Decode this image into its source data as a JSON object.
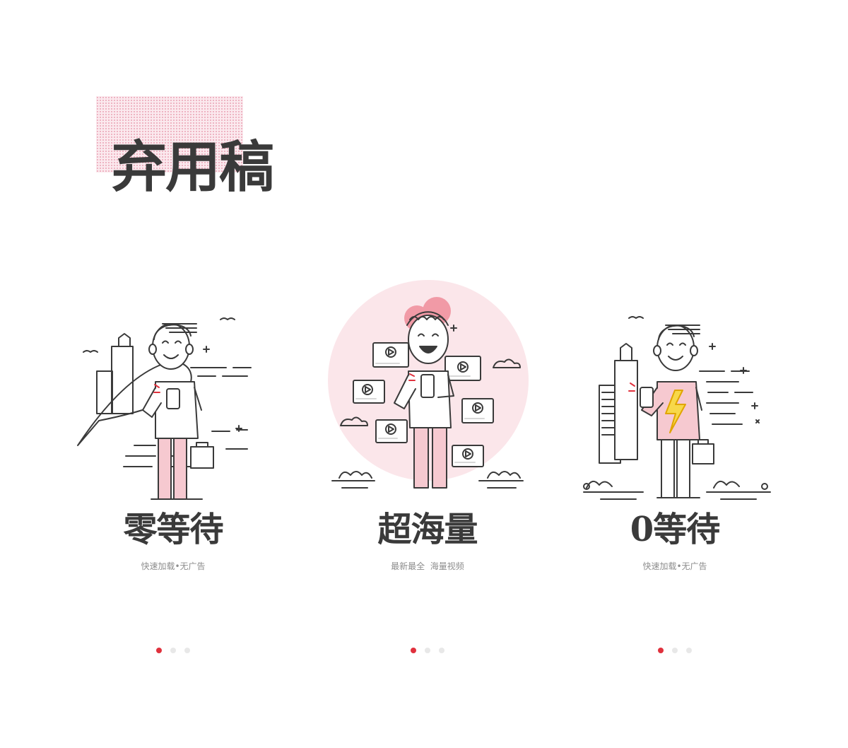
{
  "page": {
    "title": "弃用稿"
  },
  "colors": {
    "accent": "#e0313d",
    "pink": "#f6c9d0",
    "ink": "#3a3a3a",
    "sub": "#8d8d8d"
  },
  "cards": [
    {
      "title": "零等待",
      "subtitle": "快速加载•无广告",
      "illustration": "man-with-phone-city-icon",
      "active_dot": 1,
      "dot_count": 3
    },
    {
      "title": "超海量",
      "subtitle": "最新最全  海量视频",
      "illustration": "man-with-phone-videos-icon",
      "active_dot": 1,
      "dot_count": 3
    },
    {
      "title": "0等待",
      "subtitle": "快速加载•无广告",
      "illustration": "man-with-phone-lightning-icon",
      "active_dot": 1,
      "dot_count": 3
    }
  ]
}
